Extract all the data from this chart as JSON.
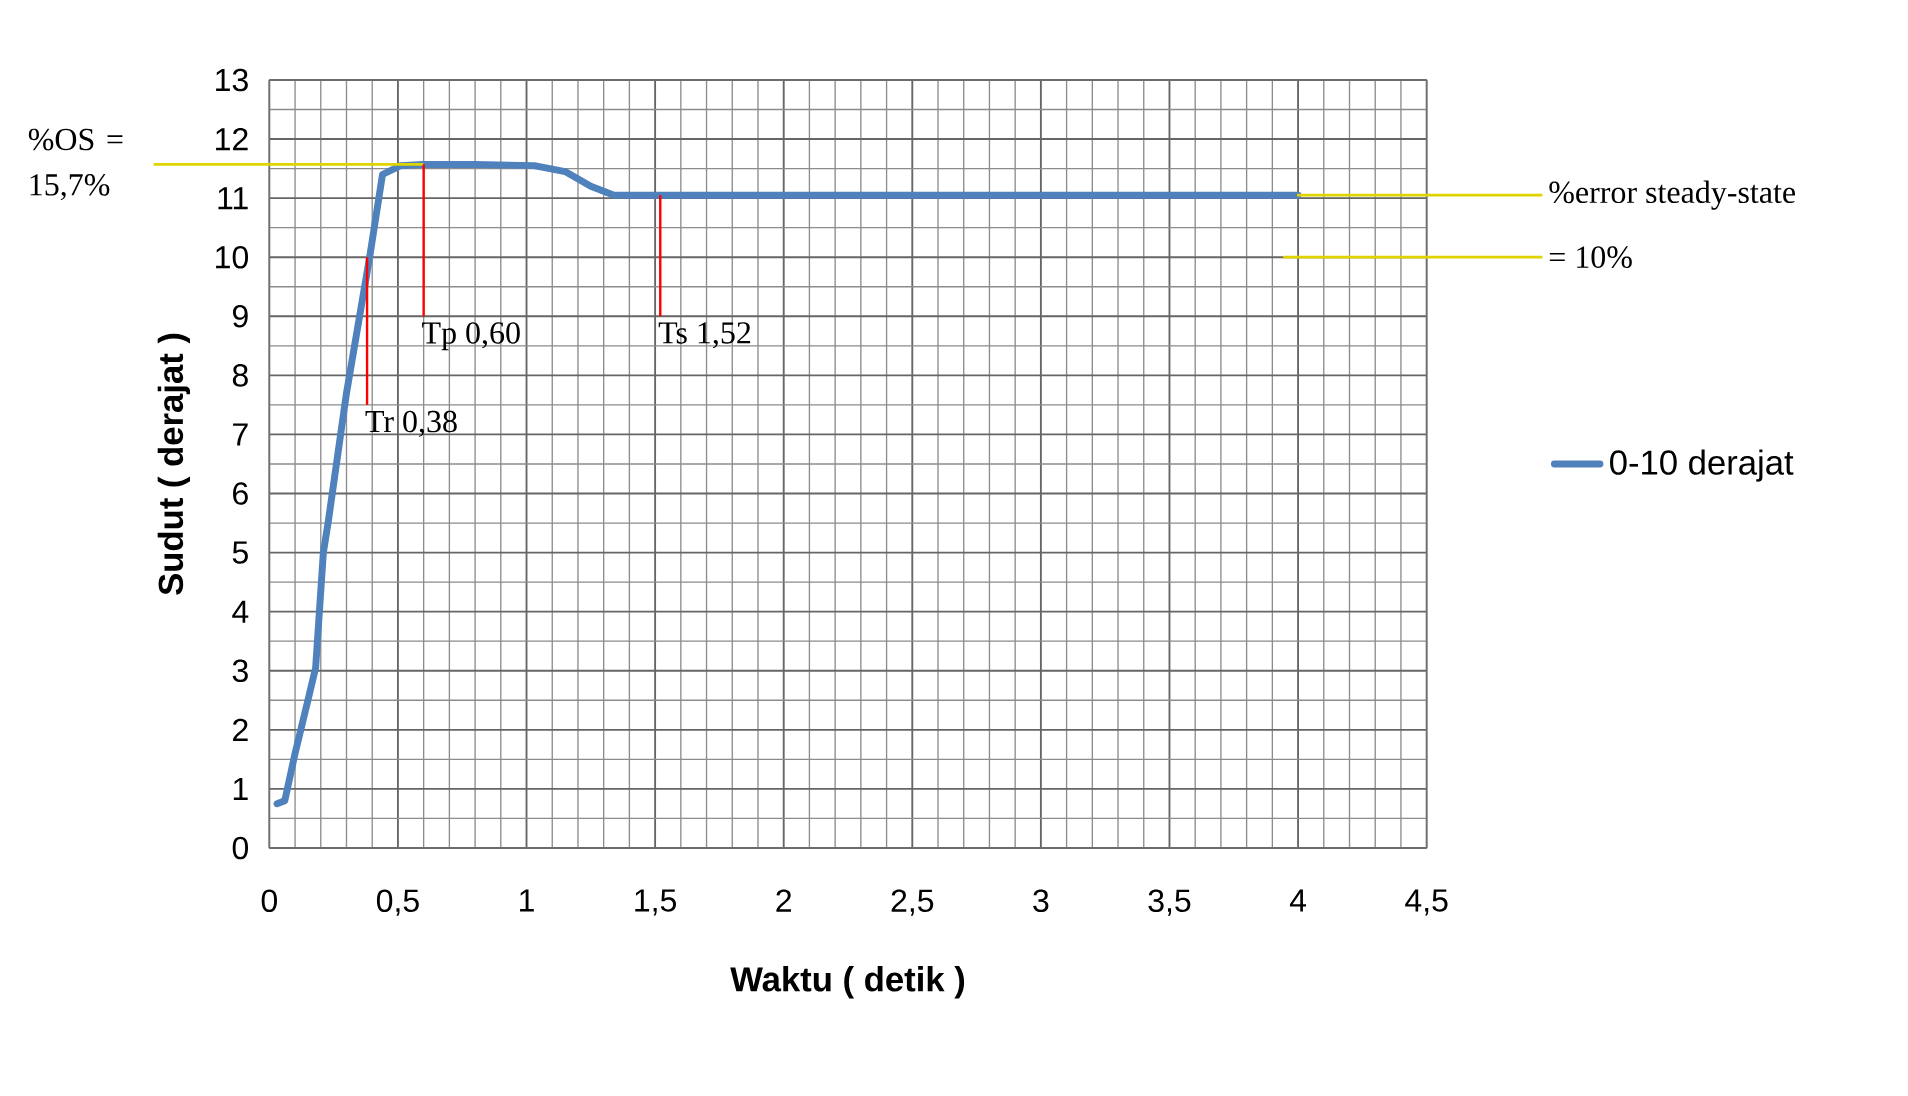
{
  "chart_data": {
    "type": "line",
    "xlabel": "Waktu ( detik )",
    "ylabel": "Sudut ( derajat )",
    "x": [
      0.03,
      0.06,
      0.1,
      0.15,
      0.18,
      0.21,
      0.23,
      0.3,
      0.39,
      0.44,
      0.51,
      0.6,
      0.8,
      1.03,
      1.15,
      1.25,
      1.34,
      1.5,
      2.0,
      3.0,
      4.0
    ],
    "series": [
      {
        "name": "0-10 derajat",
        "color": "#4f81bd",
        "values": [
          0.75,
          0.8,
          1.6,
          2.5,
          3.05,
          5.0,
          5.55,
          7.7,
          10.0,
          11.4,
          11.55,
          11.57,
          11.57,
          11.55,
          11.45,
          11.2,
          11.05,
          11.05,
          11.05,
          11.05,
          11.05
        ]
      }
    ],
    "xlim": [
      0,
      4.5
    ],
    "ylim": [
      0,
      13
    ],
    "xticks": [
      0,
      {
        "value": 0.5,
        "label": "0,5"
      },
      1,
      {
        "value": 1.5,
        "label": "1,5"
      },
      2,
      {
        "value": 2.5,
        "label": "2,5"
      },
      3,
      {
        "value": 3.5,
        "label": "3,5"
      },
      4,
      {
        "value": 4.5,
        "label": "4,5"
      }
    ],
    "yticks": [
      0,
      1,
      2,
      3,
      4,
      5,
      6,
      7,
      8,
      9,
      10,
      11,
      12,
      13
    ],
    "grid": true,
    "legend": "right",
    "marker": "none",
    "line_style": "solid",
    "ref_lines": [
      {
        "axis": "y",
        "value": 11.57,
        "color": "#e0d400"
      },
      {
        "axis": "y",
        "value": 11.05,
        "label": "%error steady-state",
        "color": "#e0d400"
      },
      {
        "axis": "y",
        "value": 10,
        "label": "= 10%",
        "color": "#e0d400"
      }
    ],
    "annotations": [
      "%OS = 15,7%",
      {
        "text": "Tr 0,38",
        "x": 0.38,
        "y": 10
      },
      {
        "text": "Tp 0,60",
        "x": 0.6,
        "y": 11.57
      },
      {
        "text": "Ts 1,52",
        "x": 1.52,
        "y": 11.05
      }
    ]
  }
}
